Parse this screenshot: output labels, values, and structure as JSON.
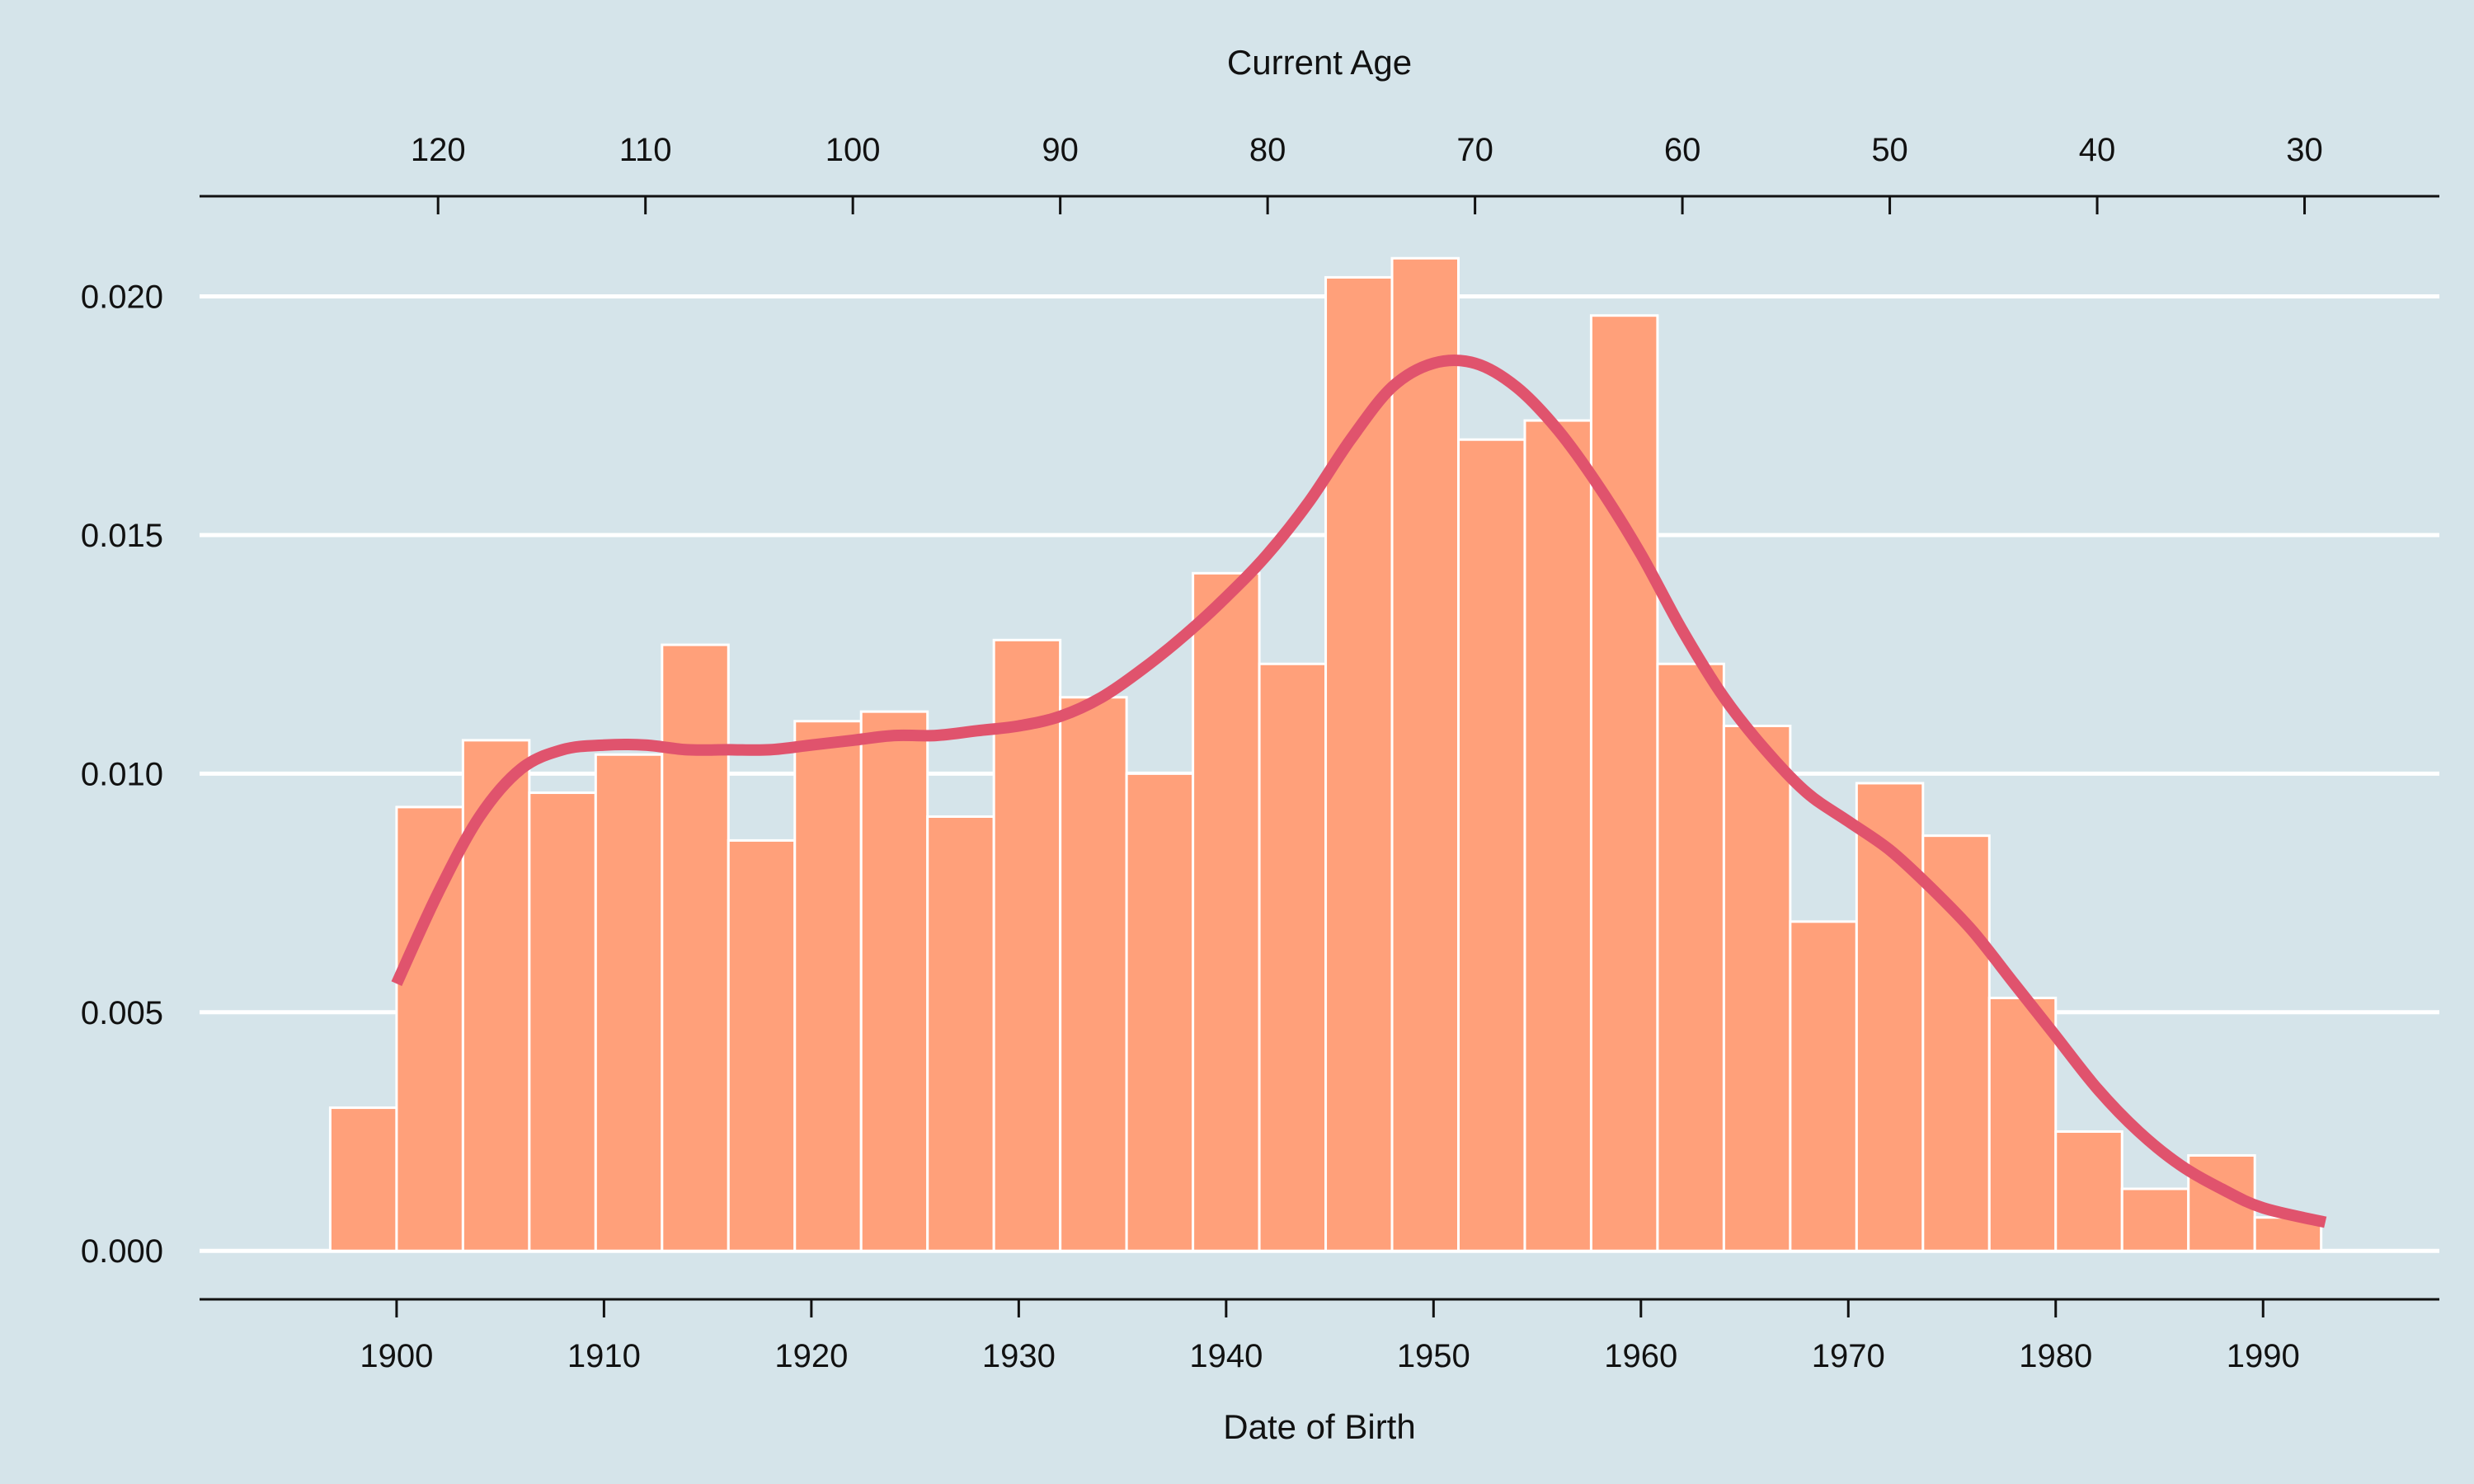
{
  "chart_data": {
    "type": "bar",
    "title": "",
    "xlabel": "Date of Birth",
    "x2label": "Current Age",
    "ylabel": "",
    "xlim": [
      1890.5,
      1998.5
    ],
    "ylim": [
      -0.00105,
      0.0221
    ],
    "x_ticks": [
      1900,
      1910,
      1920,
      1930,
      1940,
      1950,
      1960,
      1970,
      1980,
      1990
    ],
    "x2_ticks": [
      {
        "year": 1902,
        "label": "120"
      },
      {
        "year": 1912,
        "label": "110"
      },
      {
        "year": 1922,
        "label": "100"
      },
      {
        "year": 1932,
        "label": "90"
      },
      {
        "year": 1942,
        "label": "80"
      },
      {
        "year": 1952,
        "label": "70"
      },
      {
        "year": 1962,
        "label": "60"
      },
      {
        "year": 1972,
        "label": "50"
      },
      {
        "year": 1982,
        "label": "40"
      },
      {
        "year": 1992,
        "label": "30"
      }
    ],
    "y_ticks": [
      {
        "value": 0.0,
        "label": "0.000"
      },
      {
        "value": 0.005,
        "label": "0.005"
      },
      {
        "value": 0.01,
        "label": "0.010"
      },
      {
        "value": 0.015,
        "label": "0.015"
      },
      {
        "value": 0.02,
        "label": "0.020"
      }
    ],
    "grid": {
      "horizontal": true,
      "vertical": false
    },
    "histogram": {
      "bin_edges": [
        1896.8,
        1900.0,
        1903.2,
        1906.4,
        1909.6,
        1912.8,
        1916.0,
        1919.2,
        1922.4,
        1925.6,
        1928.8,
        1932.0,
        1935.2,
        1938.4,
        1941.6,
        1944.8,
        1948.0,
        1951.2,
        1954.4,
        1957.6,
        1960.8,
        1964.0,
        1967.2,
        1970.4,
        1973.6,
        1976.8,
        1980.0,
        1983.2,
        1986.4,
        1989.6,
        1992.8
      ],
      "values": [
        0.003,
        0.0093,
        0.0107,
        0.0096,
        0.0104,
        0.0127,
        0.0086,
        0.0111,
        0.0113,
        0.0091,
        0.0128,
        0.0116,
        0.01,
        0.0142,
        0.0123,
        0.0204,
        0.0208,
        0.017,
        0.0174,
        0.0196,
        0.0123,
        0.011,
        0.0069,
        0.0098,
        0.0087,
        0.0053,
        0.0025,
        0.0013,
        0.002,
        0.0007
      ]
    },
    "density_curve": {
      "x": [
        1900,
        1902,
        1904,
        1906,
        1908,
        1910,
        1912,
        1914,
        1916,
        1918,
        1920,
        1922,
        1924,
        1926,
        1928,
        1930,
        1932,
        1934,
        1936,
        1938,
        1940,
        1942,
        1944,
        1946,
        1948,
        1950,
        1952,
        1954,
        1956,
        1958,
        1960,
        1962,
        1964,
        1966,
        1968,
        1970,
        1972,
        1974,
        1976,
        1978,
        1980,
        1982,
        1984,
        1986,
        1988,
        1990,
        1993
      ],
      "y": [
        0.0056,
        0.0075,
        0.0091,
        0.0101,
        0.0105,
        0.0106,
        0.0106,
        0.0105,
        0.0105,
        0.0105,
        0.0106,
        0.0107,
        0.0108,
        0.0108,
        0.0109,
        0.011,
        0.0112,
        0.0116,
        0.0122,
        0.0129,
        0.0137,
        0.0146,
        0.0157,
        0.017,
        0.0181,
        0.0186,
        0.0186,
        0.0181,
        0.0172,
        0.016,
        0.0146,
        0.013,
        0.0116,
        0.0105,
        0.0096,
        0.009,
        0.0084,
        0.0076,
        0.0067,
        0.0056,
        0.0045,
        0.0034,
        0.0025,
        0.0018,
        0.0013,
        0.0009,
        0.0006
      ]
    },
    "colors": {
      "background": "#d5e4ea",
      "bar_fill": "#ffa07a",
      "bar_edge": "#ffffff",
      "curve": "#e0536d",
      "grid": "#ffffff",
      "axis": "#111111",
      "text": "#111111"
    }
  }
}
